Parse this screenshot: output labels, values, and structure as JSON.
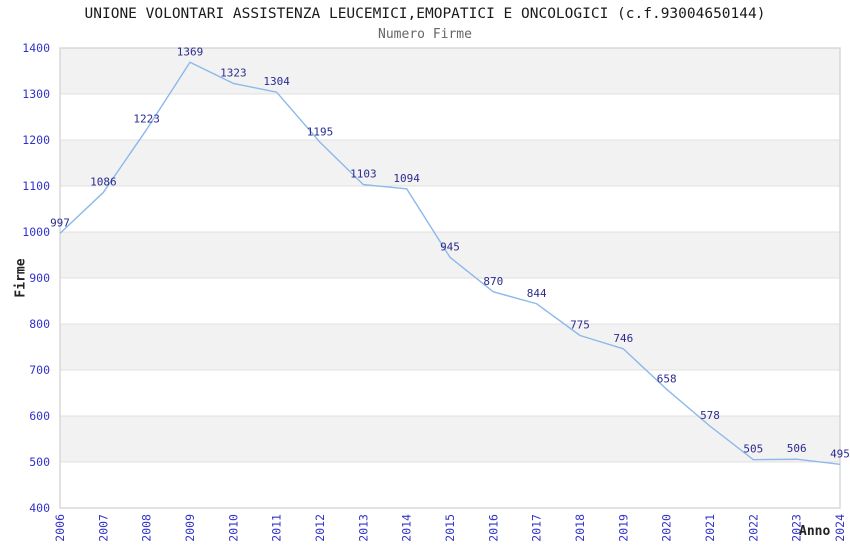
{
  "header": {
    "title": "UNIONE VOLONTARI ASSISTENZA LEUCEMICI,EMOPATICI E ONCOLOGICI (c.f.93004650144)",
    "subtitle": "Numero Firme"
  },
  "chart_data": {
    "type": "line",
    "title": "UNIONE VOLONTARI ASSISTENZA LEUCEMICI,EMOPATICI E ONCOLOGICI (c.f.93004650144)",
    "subtitle": "Numero Firme",
    "xlabel": "Anno",
    "ylabel": "Firme",
    "x": [
      2006,
      2007,
      2008,
      2009,
      2010,
      2011,
      2012,
      2013,
      2014,
      2015,
      2016,
      2017,
      2018,
      2019,
      2020,
      2021,
      2022,
      2023,
      2024
    ],
    "values": [
      997,
      1086,
      1223,
      1369,
      1323,
      1304,
      1195,
      1103,
      1094,
      945,
      870,
      844,
      775,
      746,
      658,
      578,
      505,
      506,
      495
    ],
    "ylim": [
      400,
      1400
    ],
    "ytick_step": 100,
    "grid": "horizontal-bands-alternating",
    "legend": "none",
    "data_labels_visible": true,
    "colors": {
      "line": "#8cb9e9",
      "tick_label": "#3333cc",
      "data_label": "#2b2b8f",
      "band_gray": "#f2f2f2",
      "band_white": "#ffffff",
      "grid_line": "#e0e0e0",
      "plot_border": "#d8d8d8",
      "title": "#1a1a1a",
      "subtitle": "#666666",
      "axis_title": "#222222"
    }
  }
}
